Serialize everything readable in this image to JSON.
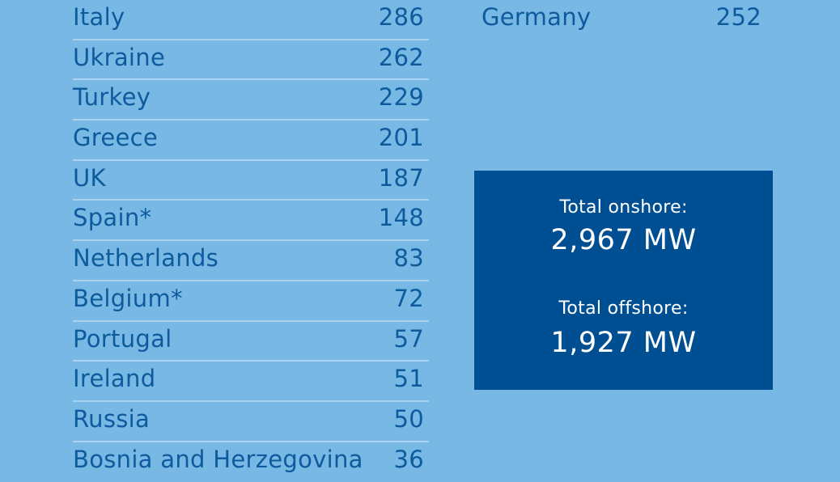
{
  "left_table": {
    "rows": [
      {
        "country": "Italy",
        "value": "286"
      },
      {
        "country": "Ukraine",
        "value": "262"
      },
      {
        "country": "Turkey",
        "value": "229"
      },
      {
        "country": "Greece",
        "value": "201"
      },
      {
        "country": "UK",
        "value": "187"
      },
      {
        "country": "Spain*",
        "value": "148"
      },
      {
        "country": "Netherlands",
        "value": "83"
      },
      {
        "country": "Belgium*",
        "value": "72"
      },
      {
        "country": "Portugal",
        "value": "57"
      },
      {
        "country": "Ireland",
        "value": "51"
      },
      {
        "country": "Russia",
        "value": "50"
      },
      {
        "country": "Bosnia and Herzegovina",
        "value": "36"
      }
    ]
  },
  "right_table": {
    "rows": [
      {
        "country": "Germany",
        "value": "252"
      }
    ]
  },
  "totals": {
    "onshore_label": "Total onshore:",
    "onshore_value": "2,967 MW",
    "offshore_label": "Total offshore:",
    "offshore_value": "1,927 MW"
  },
  "colors": {
    "background": "#78b8e4",
    "text": "#0d5b9c",
    "divider": "#a9d2ef",
    "box": "#004f92"
  }
}
